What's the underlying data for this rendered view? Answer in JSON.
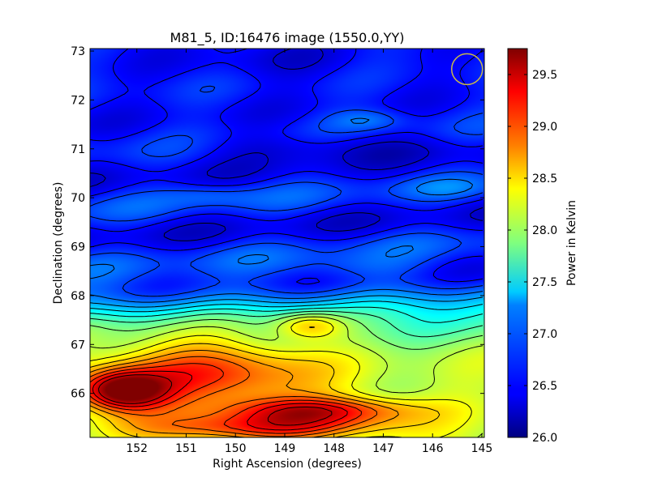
{
  "chart_data": {
    "type": "heatmap",
    "title": "M81_5, ID:16476 image (1550.0,YY)",
    "xlabel": "Right Ascension (degrees)",
    "ylabel": "Declination (degrees)",
    "xlim": [
      152.95,
      144.95
    ],
    "ylim": [
      65.1,
      73.05
    ],
    "x_ticks": [
      152,
      151,
      150,
      149,
      148,
      147,
      146,
      145
    ],
    "y_ticks": [
      66,
      67,
      68,
      69,
      70,
      71,
      72,
      73
    ],
    "colorbar": {
      "label": "Power in Kelvin",
      "range": [
        26.0,
        29.75
      ],
      "ticks": [
        "26.0",
        "26.5",
        "27.0",
        "27.5",
        "28.0",
        "28.5",
        "29.0",
        "29.5"
      ],
      "colormap": "jet"
    },
    "contours": "black",
    "beam_marker": {
      "ra": 145.3,
      "dec": 72.63,
      "color": "#c8b84a"
    },
    "features": [
      {
        "ra": 152.3,
        "dec": 66.05,
        "value": 29.5,
        "sigma_ra": 0.65,
        "sigma_dec": 0.3
      },
      {
        "ra": 150.5,
        "dec": 66.4,
        "value": 28.4,
        "sigma_ra": 1.5,
        "sigma_dec": 0.5
      },
      {
        "ra": 148.3,
        "dec": 65.65,
        "value": 28.6,
        "sigma_ra": 1.4,
        "sigma_dec": 0.2
      },
      {
        "ra": 149.5,
        "dec": 65.3,
        "value": 28.3,
        "sigma_ra": 1.8,
        "sigma_dec": 0.2
      },
      {
        "ra": 148.5,
        "dec": 67.4,
        "value": 27.9,
        "sigma_ra": 0.5,
        "sigma_dec": 0.2
      },
      {
        "ra": 147.3,
        "dec": 71.6,
        "value": 27.1,
        "sigma_ra": 0.55,
        "sigma_dec": 0.15
      },
      {
        "ra": 147.5,
        "dec": 68.55,
        "value": 26.9,
        "sigma_ra": 1.1,
        "sigma_dec": 0.2
      },
      {
        "ra": 150.5,
        "dec": 70.05,
        "value": 26.9,
        "sigma_ra": 0.6,
        "sigma_dec": 0.15
      },
      {
        "ra": 145.7,
        "dec": 70.2,
        "value": 26.85,
        "sigma_ra": 0.6,
        "sigma_dec": 0.15
      },
      {
        "ra": 148.2,
        "dec": 71.05,
        "value": 26.05,
        "sigma_ra": 1.8,
        "sigma_dec": 0.22
      },
      {
        "ra": 149.2,
        "dec": 72.8,
        "value": 26.2,
        "sigma_ra": 1.5,
        "sigma_dec": 0.3
      }
    ]
  }
}
